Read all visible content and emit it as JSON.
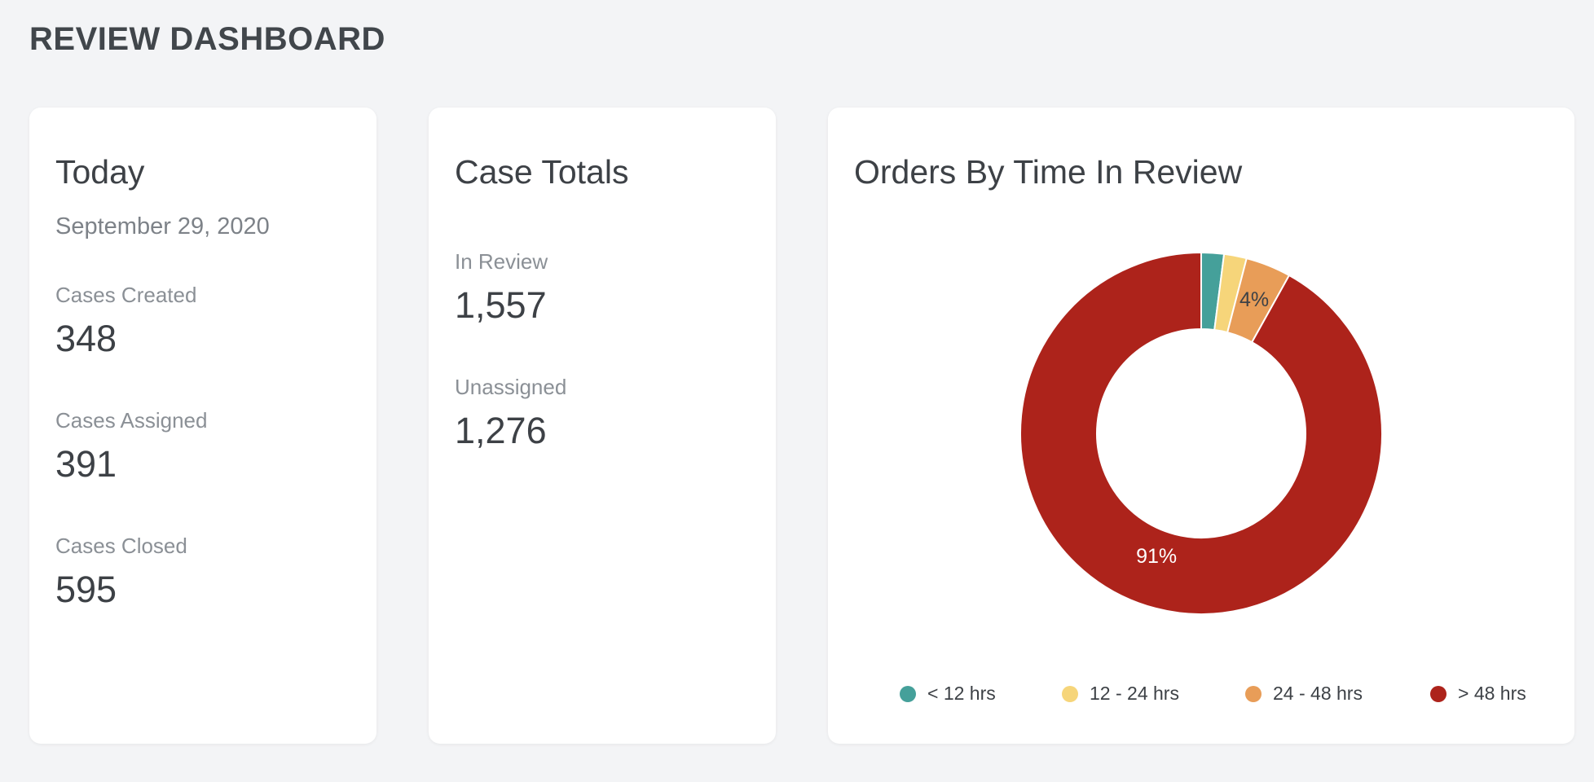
{
  "page": {
    "title": "REVIEW DASHBOARD"
  },
  "today": {
    "title": "Today",
    "date": "September 29, 2020",
    "stats": [
      {
        "label": "Cases Created",
        "value": "348"
      },
      {
        "label": "Cases Assigned",
        "value": "391"
      },
      {
        "label": "Cases Closed",
        "value": "595"
      }
    ]
  },
  "totals": {
    "title": "Case Totals",
    "stats": [
      {
        "label": "In Review",
        "value": "1,557"
      },
      {
        "label": "Unassigned",
        "value": "1,276"
      }
    ]
  },
  "orders_chart": {
    "title": "Orders By Time In Review",
    "legend": [
      {
        "label": "< 12 hrs",
        "color": "#45a09a"
      },
      {
        "label": "12 - 24 hrs",
        "color": "#f6d57a"
      },
      {
        "label": "24 - 48 hrs",
        "color": "#e89d58"
      },
      {
        "label": "> 48 hrs",
        "color": "#ad231b"
      }
    ]
  },
  "chart_data": {
    "type": "pie",
    "title": "Orders By Time In Review",
    "categories": [
      "< 12 hrs",
      "12 - 24 hrs",
      "24 - 48 hrs",
      "> 48 hrs"
    ],
    "values": [
      2,
      2,
      4,
      91
    ],
    "data_labels": [
      "",
      "",
      "4%",
      "91%"
    ],
    "colors": [
      "#45a09a",
      "#f6d57a",
      "#e89d58",
      "#ad231b"
    ],
    "donut": true,
    "legend_position": "bottom"
  }
}
